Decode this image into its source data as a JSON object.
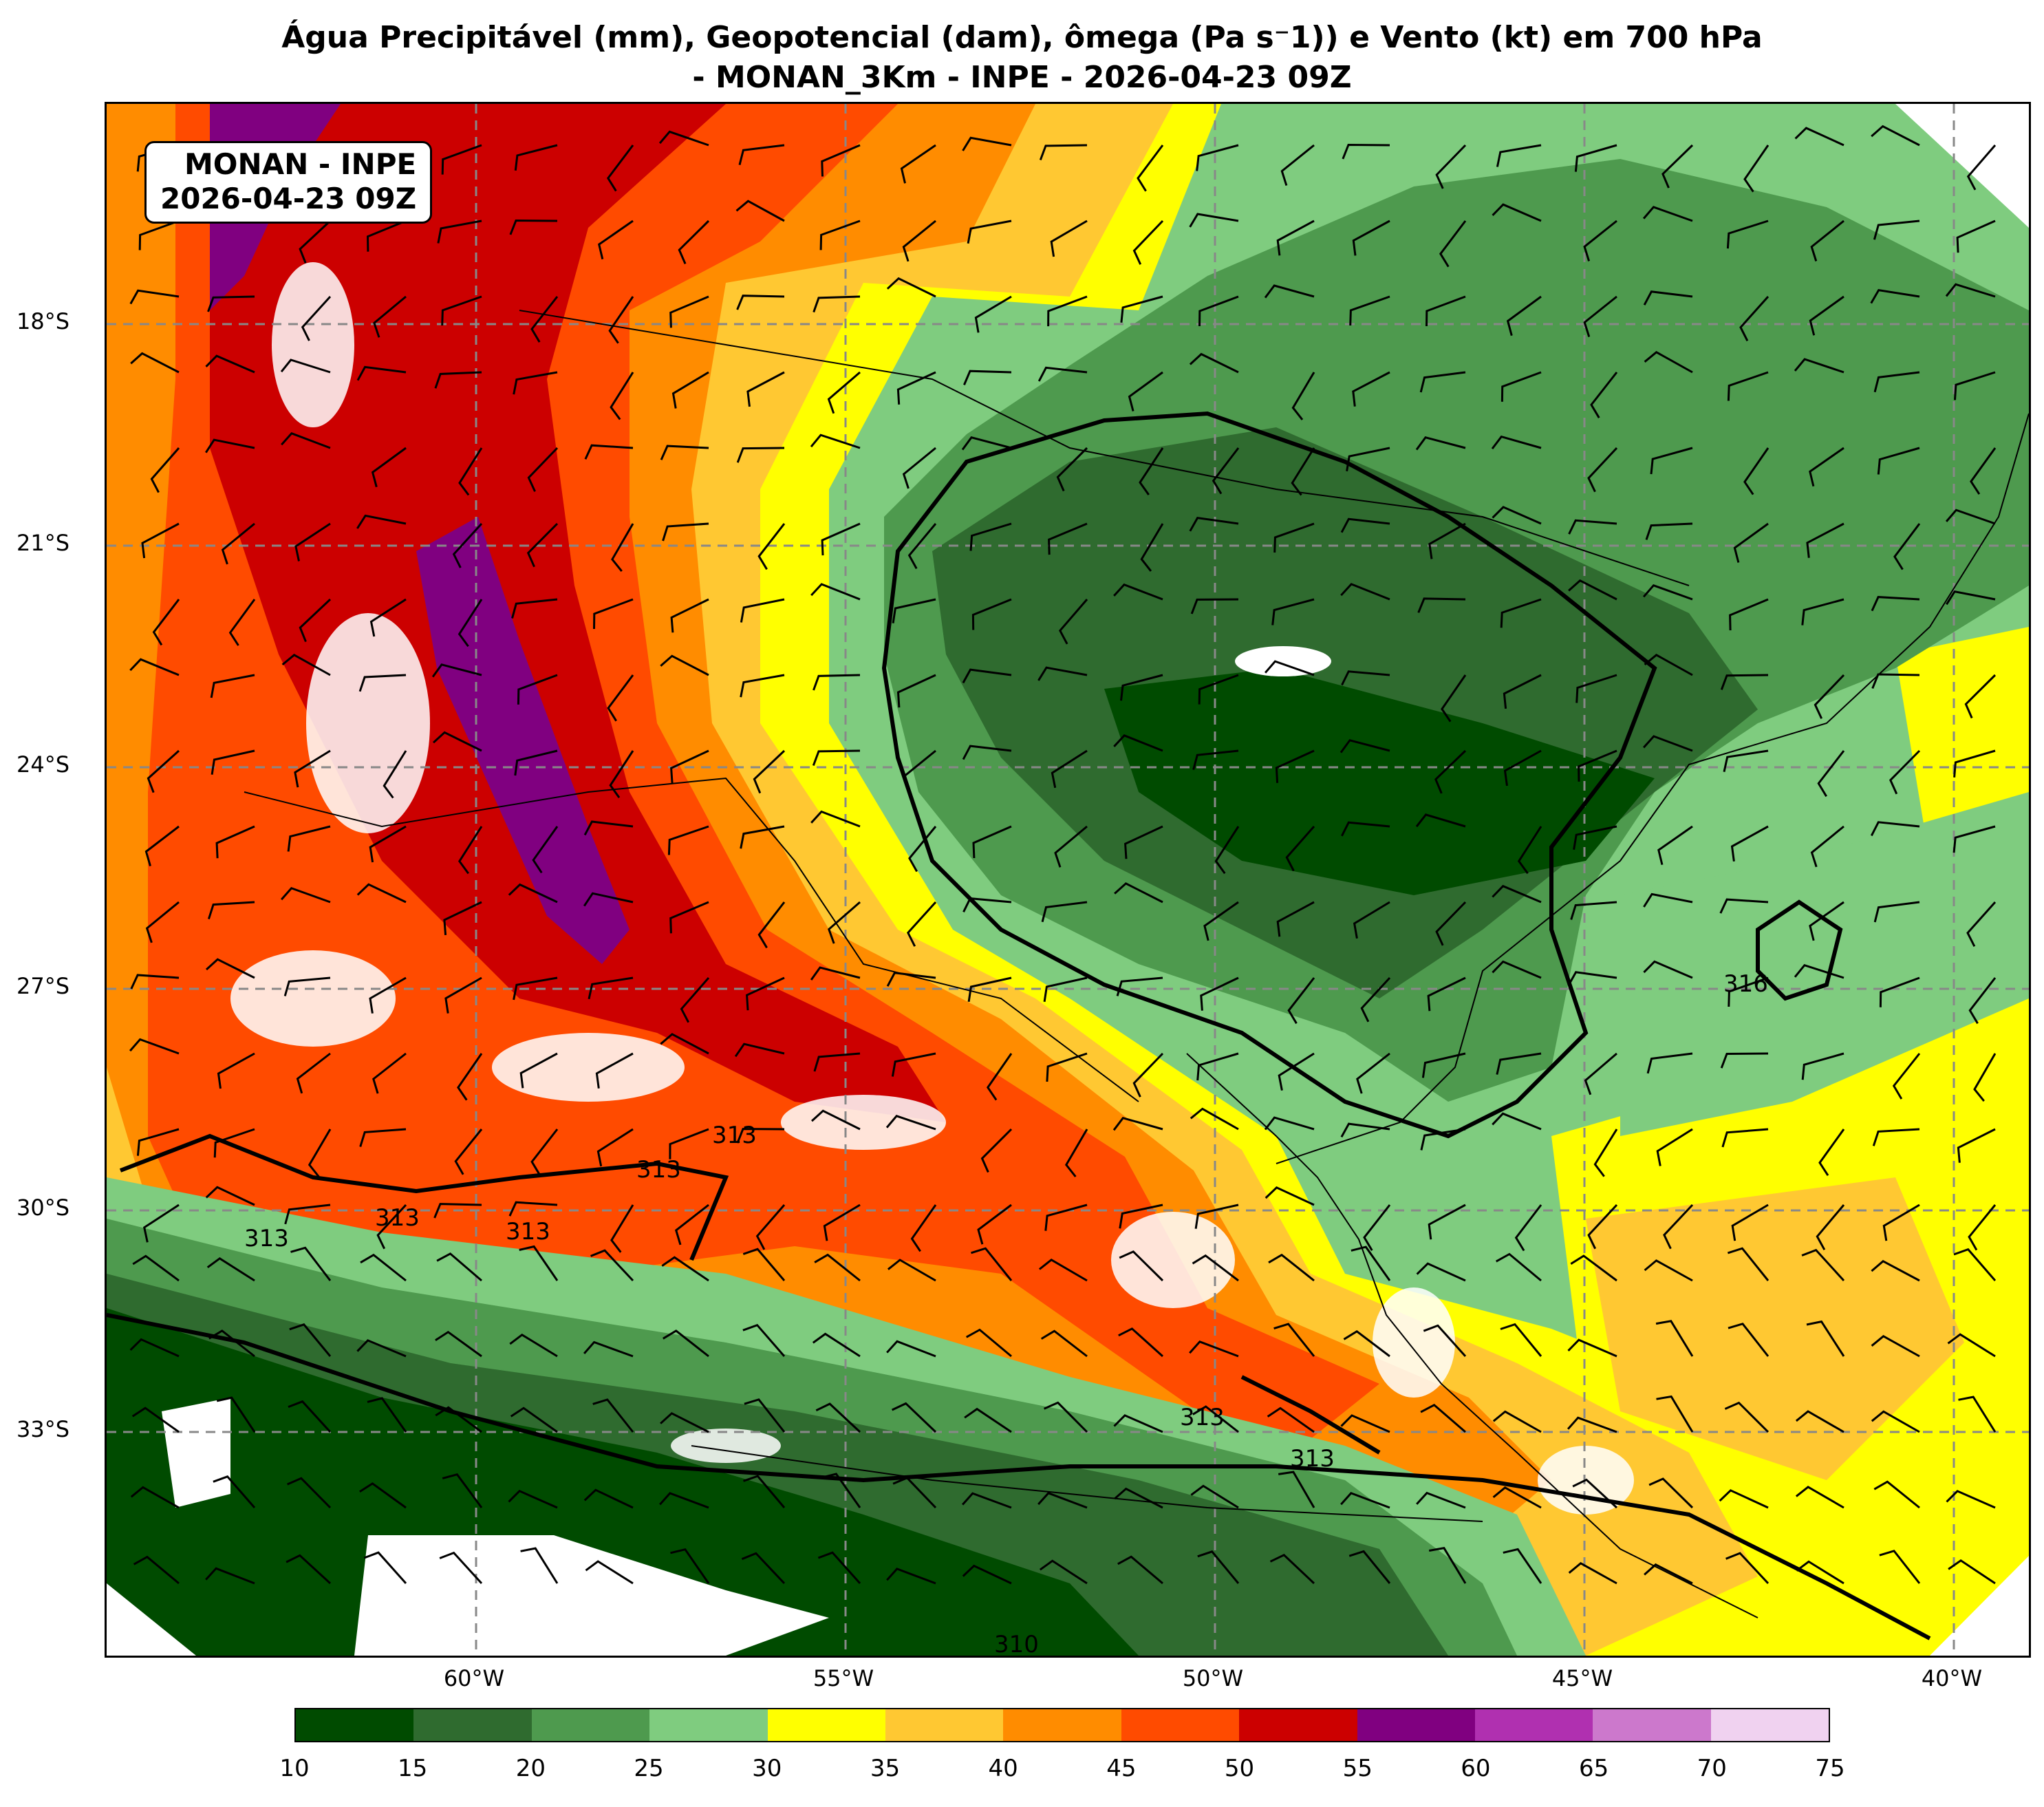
{
  "header": {
    "title_line1": "Água Precipitável (mm), Geopotencial (dam), ômega (Pa s⁻1)) e Vento (kt) em 700 hPa",
    "title_line2": "- MONAN_3Km - INPE - 2026-04-23 09Z"
  },
  "info_box": {
    "line1": "MONAN - INPE",
    "line2": "2026-04-23 09Z"
  },
  "map": {
    "lat_labels": [
      "18°S",
      "21°S",
      "24°S",
      "27°S",
      "30°S",
      "33°S"
    ],
    "lon_labels": [
      "60°W",
      "55°W",
      "50°W",
      "45°W",
      "40°W"
    ],
    "contour_labels": [
      "313",
      "313",
      "313",
      "313",
      "313",
      "313",
      "313",
      "316",
      "310"
    ]
  },
  "colorbar": {
    "ticks": [
      "10",
      "15",
      "20",
      "25",
      "30",
      "35",
      "40",
      "45",
      "50",
      "55",
      "60",
      "65",
      "70",
      "75"
    ],
    "colors": [
      "#004b00",
      "#2f6b2f",
      "#4e9a4e",
      "#7fcc7f",
      "#ffff00",
      "#ffc832",
      "#ff8c00",
      "#ff4b00",
      "#cc0000",
      "#800080",
      "#b030b0",
      "#cc78cc",
      "#f0d2f0"
    ]
  }
}
